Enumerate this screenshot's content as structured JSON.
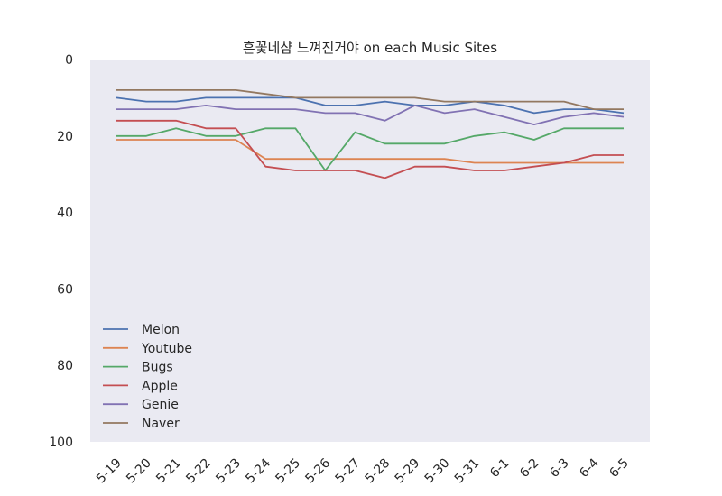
{
  "chart_data": {
    "type": "line",
    "title": "흔꽃네샴 느껴진거야 on each Music Sites",
    "xlabel": "",
    "ylabel": "",
    "categories": [
      "5-19",
      "5-20",
      "5-21",
      "5-22",
      "5-23",
      "5-24",
      "5-25",
      "5-26",
      "5-27",
      "5-28",
      "5-29",
      "5-30",
      "5-31",
      "6-1",
      "6-2",
      "6-3",
      "6-4",
      "6-5"
    ],
    "ylim": [
      0,
      100
    ],
    "y_inverted": true,
    "yticks": [
      "0",
      "20",
      "40",
      "60",
      "80",
      "100"
    ],
    "grid": false,
    "legend_position": "lower-left",
    "background_color": "#eaeaf2",
    "series": [
      {
        "name": "Melon",
        "color": "#4c72b0",
        "values": [
          10,
          11,
          11,
          10,
          10,
          10,
          10,
          12,
          12,
          11,
          12,
          12,
          11,
          12,
          14,
          13,
          13,
          14
        ]
      },
      {
        "name": "Youtube",
        "color": "#dd8452",
        "values": [
          21,
          21,
          21,
          21,
          21,
          26,
          26,
          26,
          26,
          26,
          26,
          26,
          27,
          27,
          27,
          27,
          27,
          27
        ]
      },
      {
        "name": "Bugs",
        "color": "#55a868",
        "values": [
          20,
          20,
          18,
          20,
          20,
          18,
          18,
          29,
          19,
          22,
          22,
          22,
          20,
          19,
          21,
          18,
          18,
          18
        ]
      },
      {
        "name": "Apple",
        "color": "#c44e52",
        "values": [
          16,
          16,
          16,
          18,
          18,
          28,
          29,
          29,
          29,
          31,
          28,
          28,
          29,
          29,
          28,
          27,
          25,
          25
        ]
      },
      {
        "name": "Genie",
        "color": "#8172b3",
        "values": [
          13,
          13,
          13,
          12,
          13,
          13,
          13,
          14,
          14,
          16,
          12,
          14,
          13,
          15,
          17,
          15,
          14,
          15
        ]
      },
      {
        "name": "Naver",
        "color": "#937860",
        "values": [
          8,
          8,
          8,
          8,
          8,
          9,
          10,
          10,
          10,
          10,
          10,
          11,
          11,
          11,
          11,
          11,
          13,
          13
        ]
      }
    ]
  }
}
